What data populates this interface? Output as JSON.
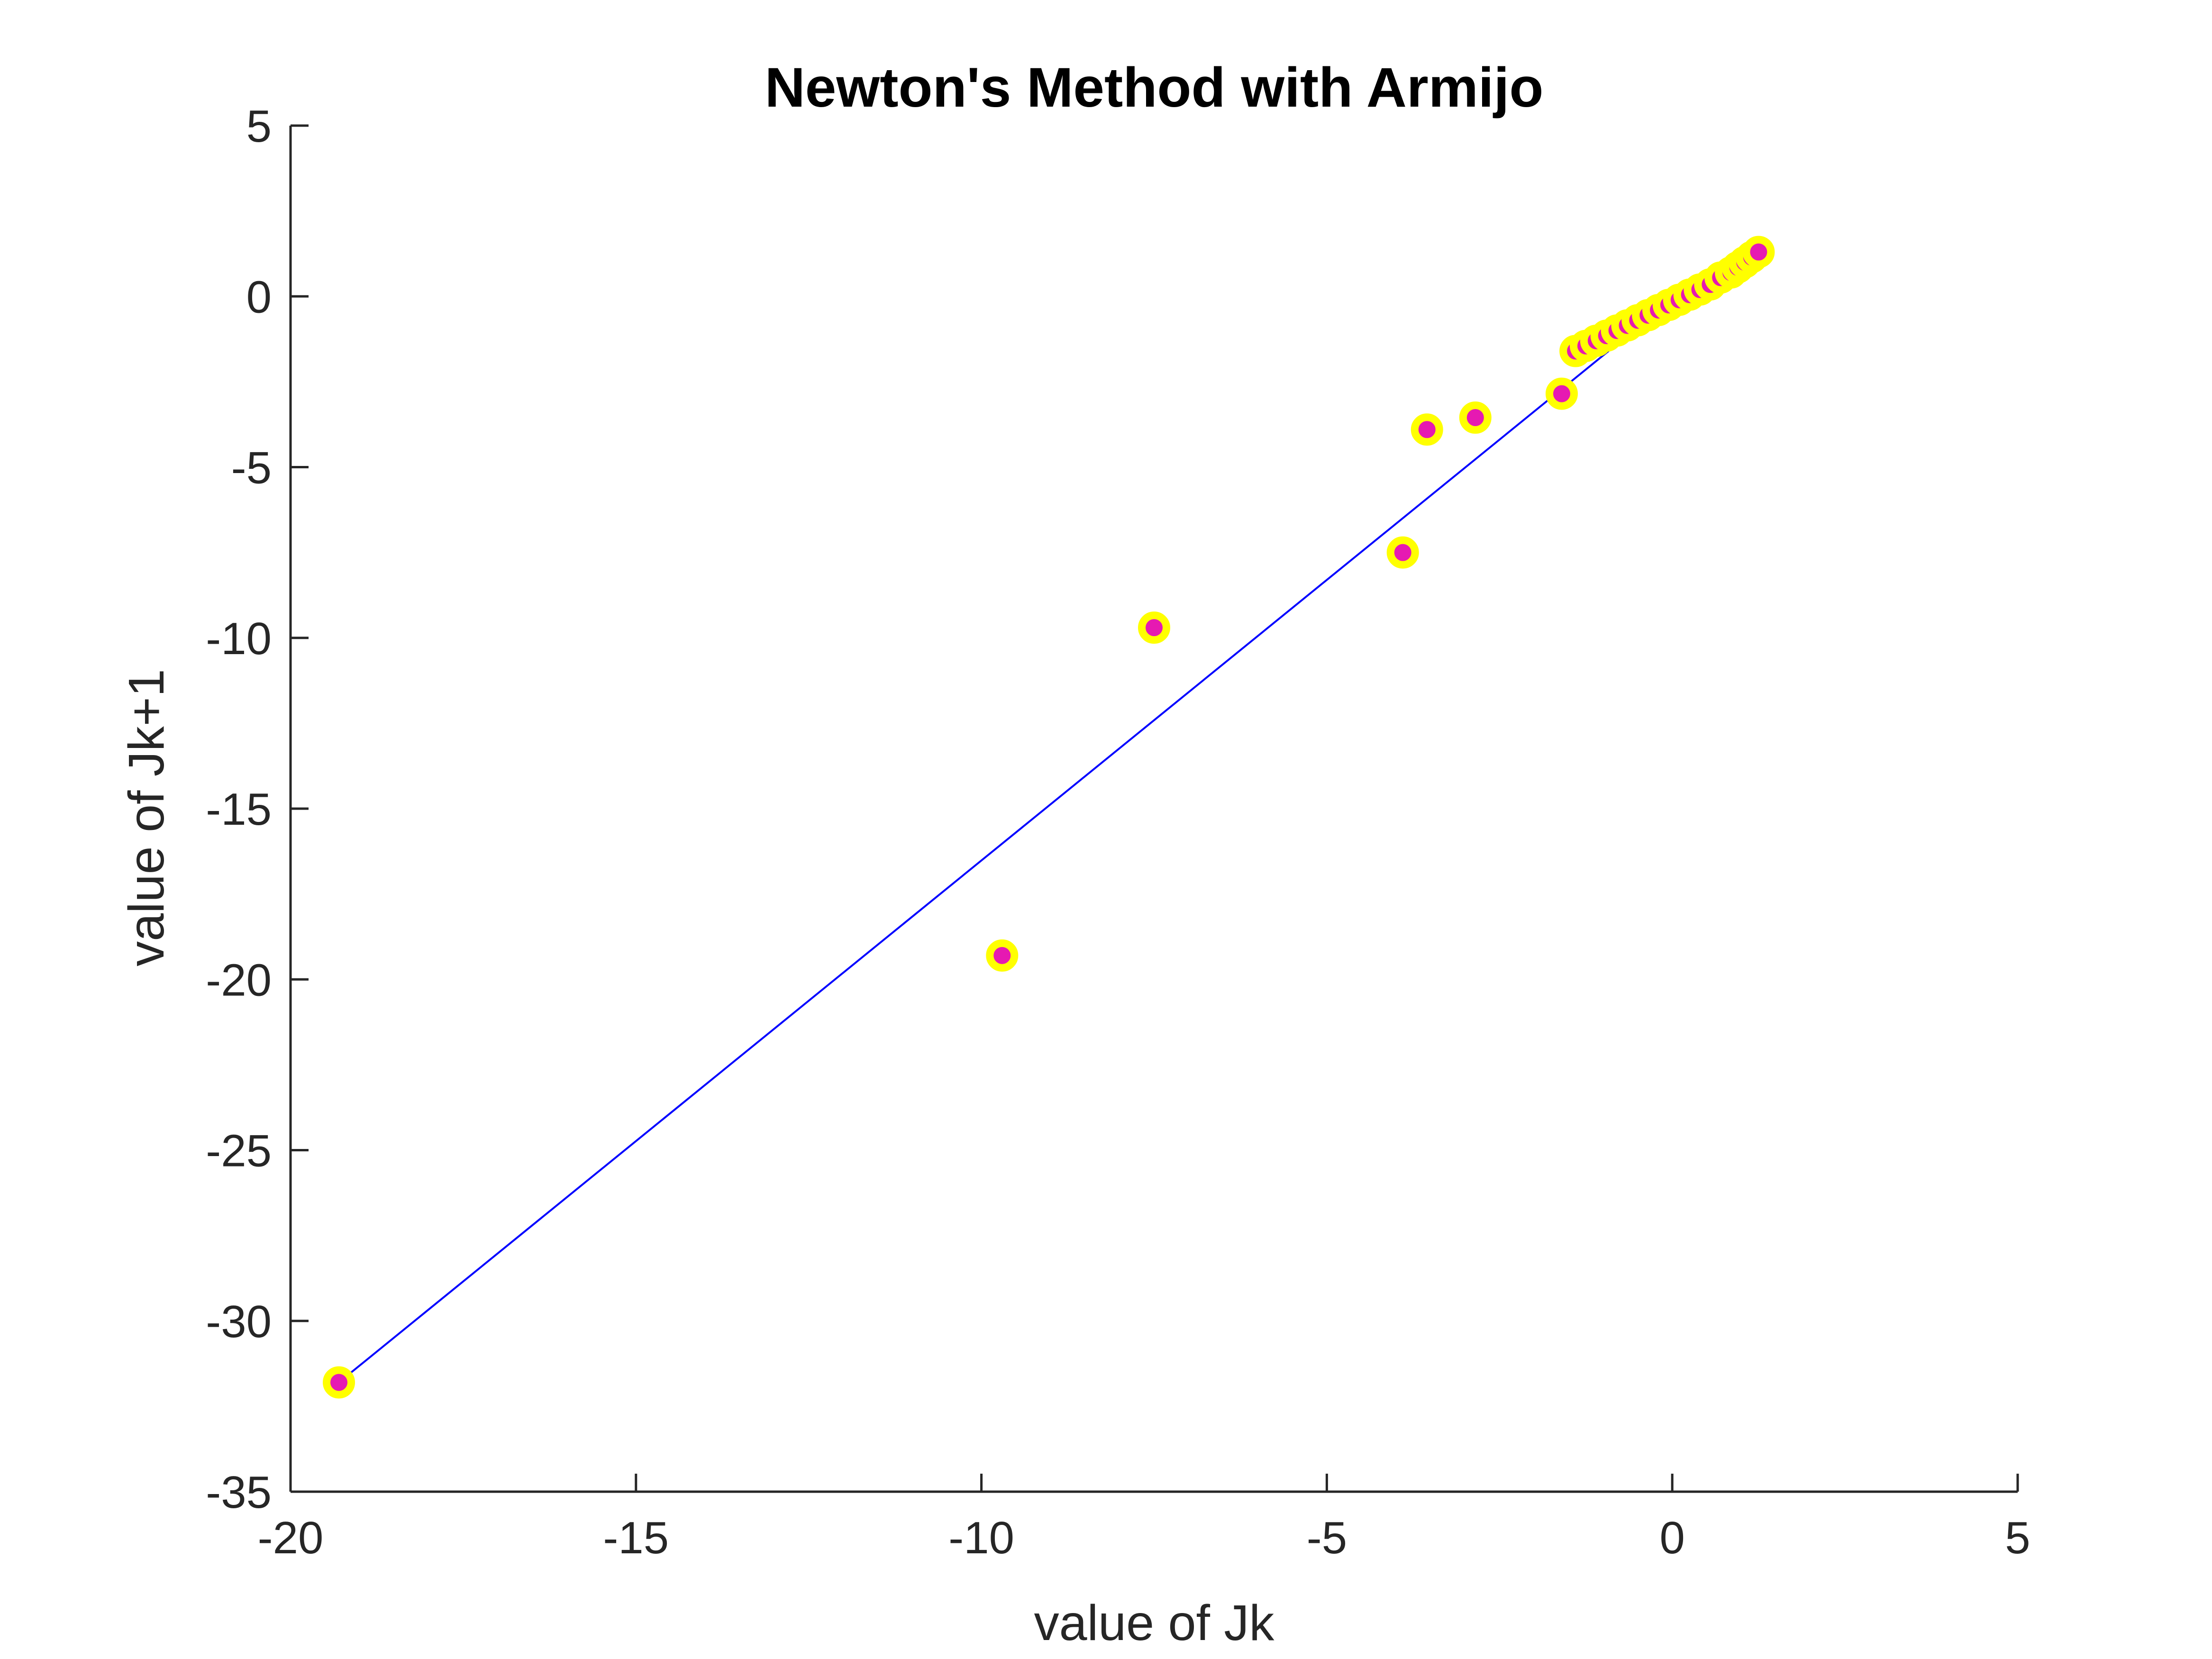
{
  "chart_data": {
    "type": "scatter",
    "title": "Newton's Method with Armijo",
    "xlabel": "value of Jk",
    "ylabel": "value of Jk+1",
    "xlim": [
      -20,
      5
    ],
    "ylim": [
      -35,
      5
    ],
    "xticks": [
      -20,
      -15,
      -10,
      -5,
      0,
      5
    ],
    "yticks": [
      5,
      0,
      -5,
      -10,
      -15,
      -20,
      -25,
      -30,
      -35
    ],
    "xtick_labels": [
      "-20",
      "-15",
      "-10",
      "-5",
      "0",
      "5"
    ],
    "ytick_labels": [
      "5",
      "0",
      "-5",
      "-10",
      "-15",
      "-20",
      "-25",
      "-30",
      "-35"
    ],
    "grid": false,
    "legend": "none",
    "colors": {
      "marker_edge": "#ffff00",
      "marker_face": "#e619b2",
      "fit_line": "#0000ff",
      "axis": "#262626"
    },
    "fit_line": {
      "x": [
        -19.3,
        0.6
      ],
      "y": [
        -31.8,
        0.9
      ]
    },
    "points": {
      "x": [
        -19.3,
        -9.7,
        -7.5,
        -3.9,
        -3.55,
        -2.85,
        -1.6,
        -1.4,
        -1.25,
        -1.1,
        -0.95,
        -0.8,
        -0.65,
        -0.5,
        -0.35,
        -0.2,
        -0.05,
        0.1,
        0.25,
        0.4,
        0.55,
        0.7,
        0.85,
        0.95,
        1.05,
        1.15,
        1.25
      ],
      "y": [
        -31.8,
        -19.3,
        -9.7,
        -7.5,
        -3.9,
        -3.55,
        -2.85,
        -1.6,
        -1.45,
        -1.3,
        -1.15,
        -1.0,
        -0.85,
        -0.7,
        -0.55,
        -0.4,
        -0.25,
        -0.1,
        0.05,
        0.2,
        0.35,
        0.55,
        0.7,
        0.85,
        1.0,
        1.15,
        1.3
      ]
    }
  }
}
